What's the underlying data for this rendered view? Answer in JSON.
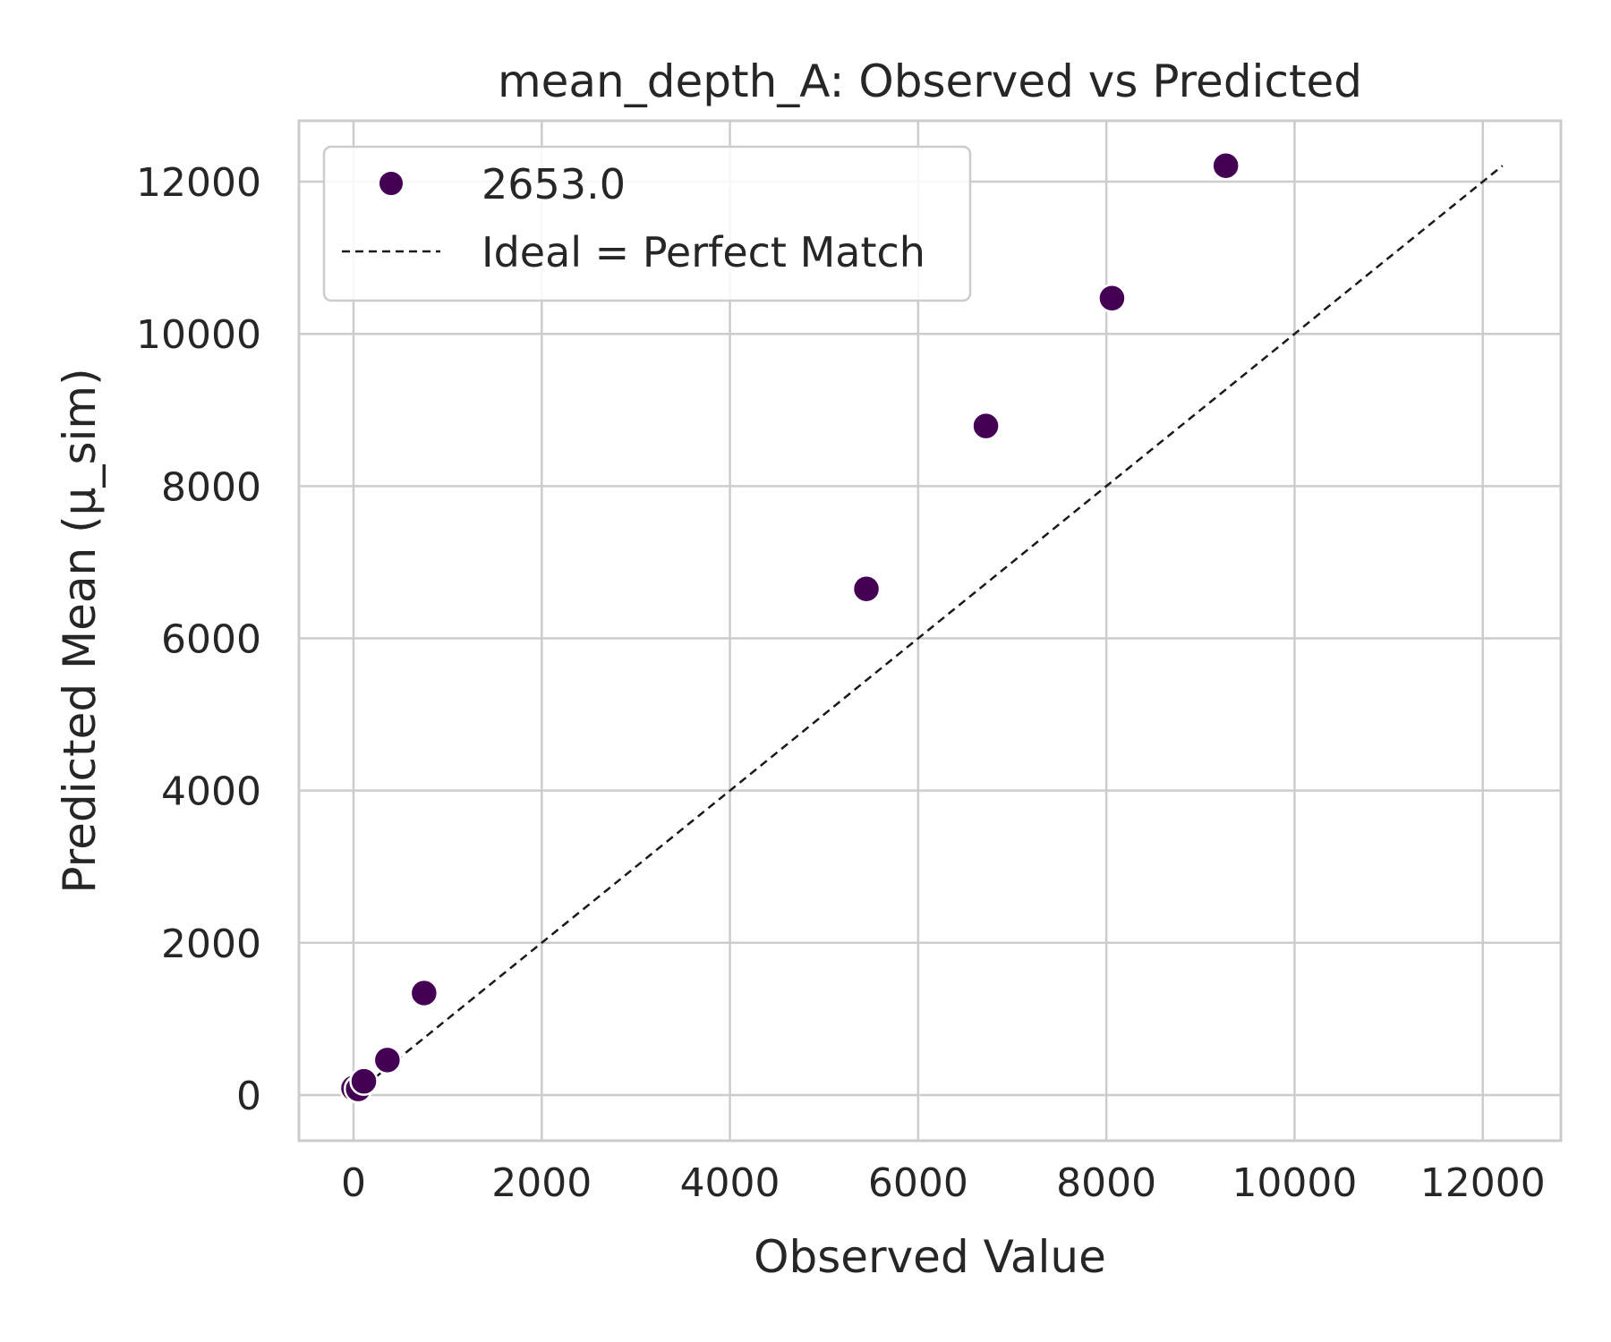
{
  "chart_data": {
    "type": "scatter",
    "title": "mean_depth_A: Observed vs Predicted",
    "xlabel": "Observed Value",
    "ylabel": "Predicted Mean (μ_sim)",
    "xlim": [
      -580,
      12830
    ],
    "ylim": [
      -600,
      12800
    ],
    "x_ticks": [
      0,
      2000,
      4000,
      6000,
      8000,
      10000,
      12000
    ],
    "y_ticks": [
      0,
      2000,
      4000,
      6000,
      8000,
      10000,
      12000
    ],
    "x_tick_labels": [
      "0",
      "2000",
      "4000",
      "6000",
      "8000",
      "10000",
      "12000"
    ],
    "y_tick_labels": [
      "0",
      "2000",
      "4000",
      "6000",
      "8000",
      "10000",
      "12000"
    ],
    "grid": true,
    "legend_position": "upper-left",
    "series": [
      {
        "name": "2653.0",
        "color": "#440154",
        "marker": "circle",
        "points": [
          {
            "x": 0,
            "y": 90
          },
          {
            "x": 50,
            "y": 80
          },
          {
            "x": 110,
            "y": 180
          },
          {
            "x": 360,
            "y": 460
          },
          {
            "x": 750,
            "y": 1340
          },
          {
            "x": 5450,
            "y": 6650
          },
          {
            "x": 6720,
            "y": 8790
          },
          {
            "x": 8060,
            "y": 10470
          },
          {
            "x": 9270,
            "y": 12210
          }
        ]
      }
    ],
    "reference_line": {
      "name": "Ideal = Perfect Match",
      "style": "dashed",
      "color": "#1a1a1a",
      "from": [
        0,
        0
      ],
      "to": [
        12210,
        12210
      ]
    }
  }
}
